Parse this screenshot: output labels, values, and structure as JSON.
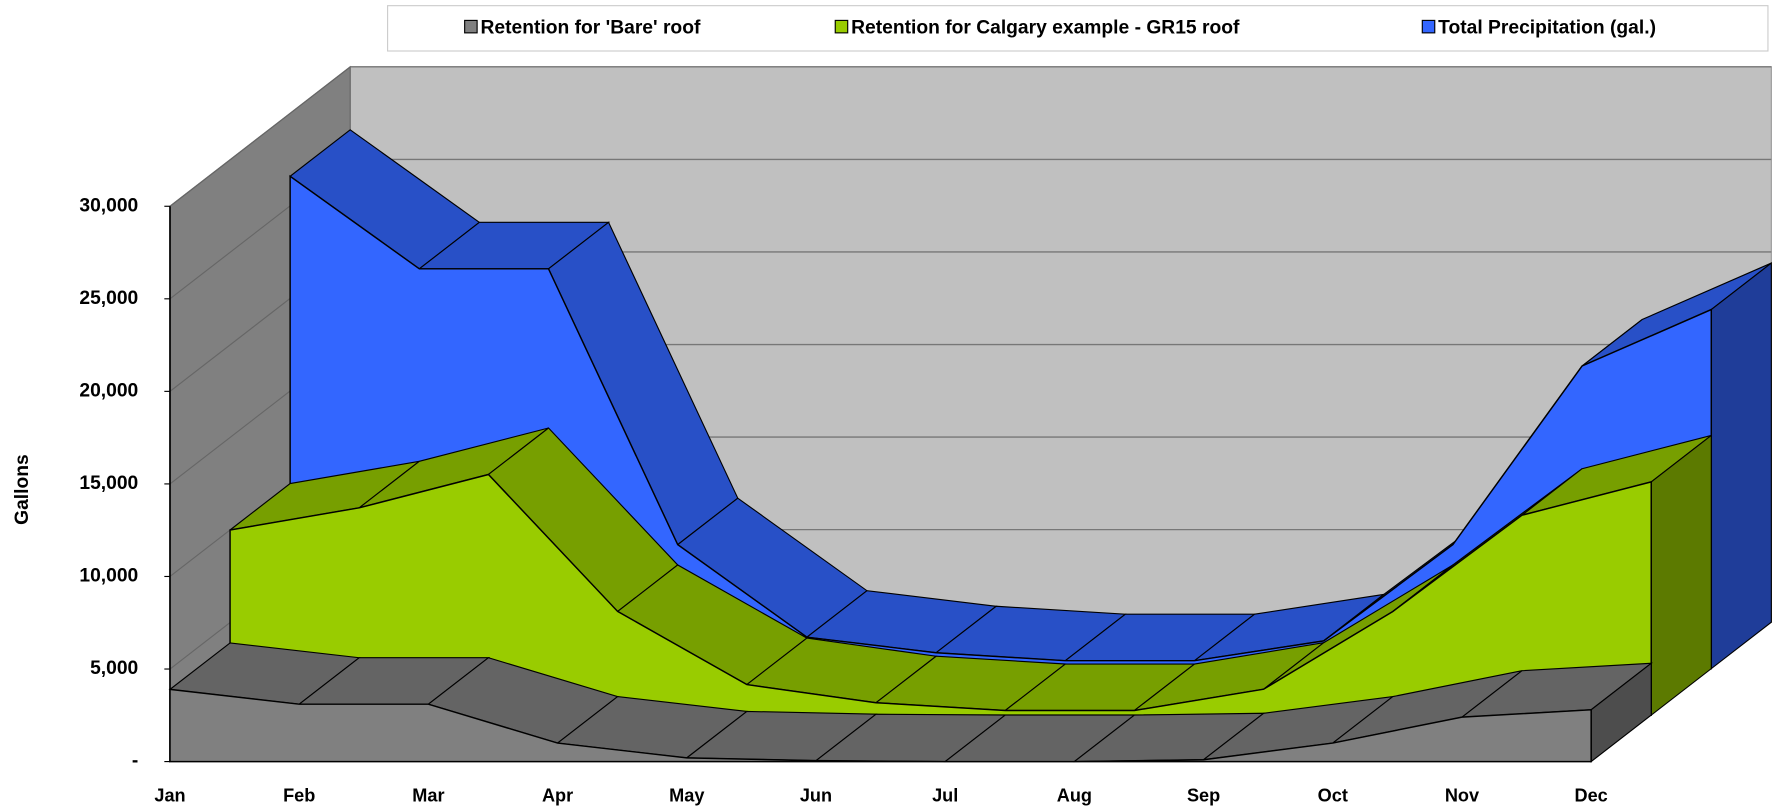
{
  "chart_data": {
    "type": "area3d",
    "y_label": "Gallons",
    "categories": [
      "Jan",
      "Feb",
      "Mar",
      "Apr",
      "May",
      "Jun",
      "Jul",
      "Aug",
      "Sep",
      "Oct",
      "Nov",
      "Dec"
    ],
    "series": [
      {
        "name": "Retention for 'Bare' roof",
        "color": "#808080",
        "values": [
          3900,
          3100,
          3100,
          1000,
          200,
          50,
          0,
          0,
          100,
          1000,
          2400,
          2800
        ]
      },
      {
        "name": "Retention for Calgary example - GR15 roof",
        "color": "#99cc00",
        "values": [
          10000,
          11200,
          13000,
          5600,
          1650,
          670,
          250,
          250,
          1400,
          5600,
          10800,
          12600
        ]
      },
      {
        "name": "Total Precipitation (gal.)",
        "color": "#3366ff",
        "values": [
          26600,
          21600,
          21600,
          6700,
          1700,
          860,
          430,
          430,
          1500,
          6700,
          16350,
          19400
        ]
      }
    ],
    "ylim": [
      0,
      30000
    ],
    "yticks": [
      {
        "value": 0,
        "label": "-"
      },
      {
        "value": 5000,
        "label": "5,000"
      },
      {
        "value": 10000,
        "label": "10,000"
      },
      {
        "value": 15000,
        "label": "15,000"
      },
      {
        "value": 20000,
        "label": "20,000"
      },
      {
        "value": 25000,
        "label": "25,000"
      },
      {
        "value": 30000,
        "label": "30,000"
      }
    ],
    "grid": true,
    "legend": "top"
  }
}
